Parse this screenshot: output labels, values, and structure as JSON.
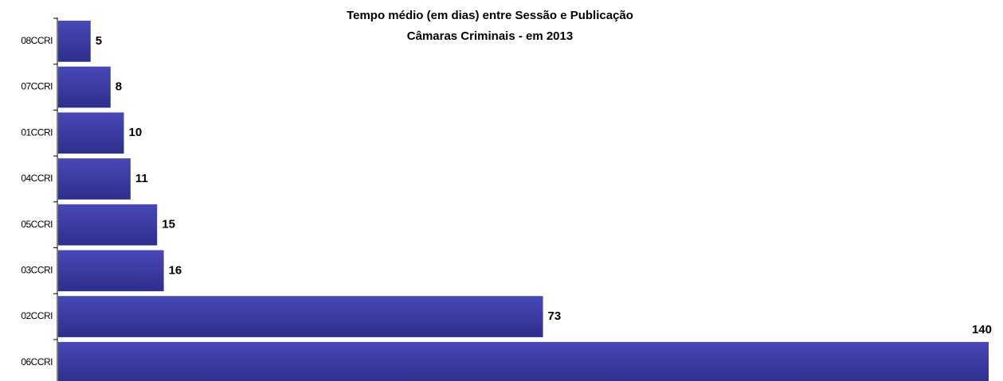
{
  "chart_data": {
    "type": "barh",
    "title": "Tempo médio (em dias) entre Sessão e Publicação",
    "subtitle": "Câmaras Criminais - em 2013",
    "categories": [
      "08CCRI",
      "07CCRI",
      "01CCRI",
      "04CCRI",
      "05CCRI",
      "03CCRI",
      "02CCRI",
      "06CCRI"
    ],
    "values": [
      5,
      8,
      10,
      11,
      15,
      16,
      73,
      140
    ],
    "color": "#3b3ba6"
  }
}
